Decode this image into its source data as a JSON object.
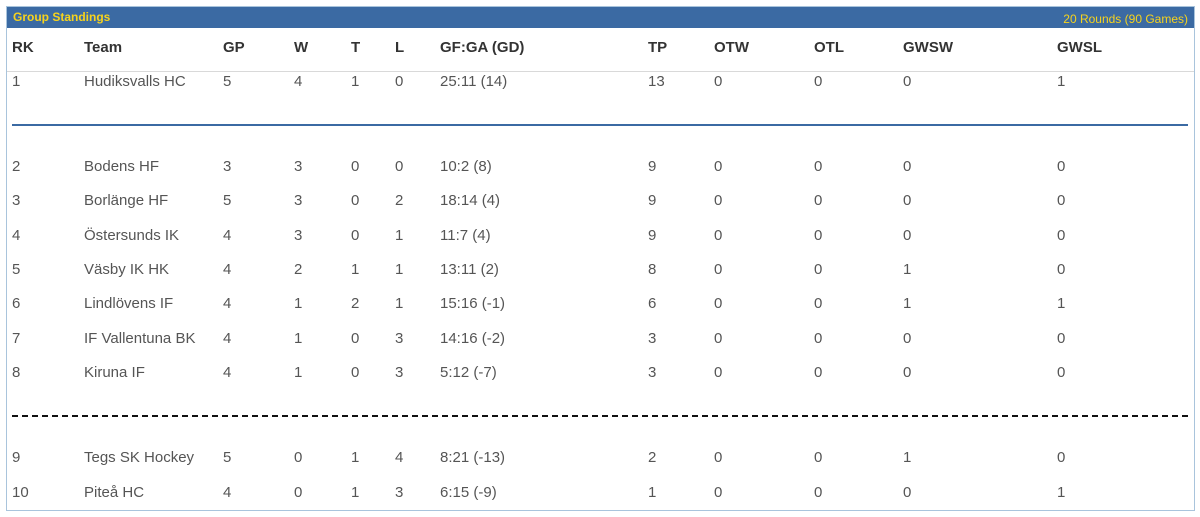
{
  "header": {
    "title": "Group Standings",
    "rounds": "20 Rounds (90 Games)"
  },
  "columns": [
    "RK",
    "Team",
    "GP",
    "W",
    "T",
    "L",
    "GF:GA (GD)",
    "TP",
    "OTW",
    "OTL",
    "GWSW",
    "GWSL"
  ],
  "rows": [
    [
      "1",
      "Hudiksvalls HC",
      "5",
      "4",
      "1",
      "0",
      "25:11 (14)",
      "13",
      "0",
      "0",
      "0",
      "1"
    ],
    [
      "2",
      "Bodens HF",
      "3",
      "3",
      "0",
      "0",
      "10:2 (8)",
      "9",
      "0",
      "0",
      "0",
      "0"
    ],
    [
      "3",
      "Borlänge HF",
      "5",
      "3",
      "0",
      "2",
      "18:14 (4)",
      "9",
      "0",
      "0",
      "0",
      "0"
    ],
    [
      "4",
      "Östersunds IK",
      "4",
      "3",
      "0",
      "1",
      "11:7 (4)",
      "9",
      "0",
      "0",
      "0",
      "0"
    ],
    [
      "5",
      "Väsby IK HK",
      "4",
      "2",
      "1",
      "1",
      "13:11 (2)",
      "8",
      "0",
      "0",
      "1",
      "0"
    ],
    [
      "6",
      "Lindlövens IF",
      "4",
      "1",
      "2",
      "1",
      "15:16 (-1)",
      "6",
      "0",
      "0",
      "1",
      "1"
    ],
    [
      "7",
      "IF Vallentuna BK",
      "4",
      "1",
      "0",
      "3",
      "14:16 (-2)",
      "3",
      "0",
      "0",
      "0",
      "0"
    ],
    [
      "8",
      "Kiruna IF",
      "4",
      "1",
      "0",
      "3",
      "5:12 (-7)",
      "3",
      "0",
      "0",
      "0",
      "0"
    ],
    [
      "9",
      "Tegs SK Hockey",
      "5",
      "0",
      "1",
      "4",
      "8:21 (-13)",
      "2",
      "0",
      "0",
      "1",
      "0"
    ],
    [
      "10",
      "Piteå HC",
      "4",
      "0",
      "1",
      "3",
      "6:15 (-9)",
      "1",
      "0",
      "0",
      "0",
      "1"
    ]
  ]
}
